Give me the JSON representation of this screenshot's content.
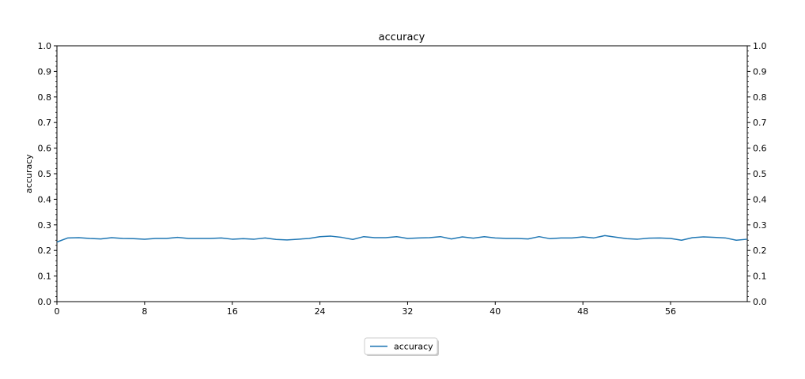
{
  "chart_data": {
    "type": "line",
    "title": "accuracy",
    "xlabel": "",
    "ylabel": "accuracy",
    "xlim": [
      0,
      63
    ],
    "ylim": [
      0.0,
      1.0
    ],
    "x_ticks": [
      0,
      8,
      16,
      24,
      32,
      40,
      48,
      56
    ],
    "y_ticks": [
      0.0,
      0.1,
      0.2,
      0.3,
      0.4,
      0.5,
      0.6,
      0.7,
      0.8,
      0.9,
      1.0
    ],
    "y_tick_labels": [
      "0.0",
      "0.1",
      "0.2",
      "0.3",
      "0.4",
      "0.5",
      "0.6",
      "0.7",
      "0.8",
      "0.9",
      "1.0"
    ],
    "right_axis_mirror": true,
    "grid": false,
    "legend_position": "bottom-center",
    "series": [
      {
        "name": "accuracy",
        "color": "#1f77b4",
        "x": [
          0,
          1,
          2,
          3,
          4,
          5,
          6,
          7,
          8,
          9,
          10,
          11,
          12,
          13,
          14,
          15,
          16,
          17,
          18,
          19,
          20,
          21,
          22,
          23,
          24,
          25,
          26,
          27,
          28,
          29,
          30,
          31,
          32,
          33,
          34,
          35,
          36,
          37,
          38,
          39,
          40,
          41,
          42,
          43,
          44,
          45,
          46,
          47,
          48,
          49,
          50,
          51,
          52,
          53,
          54,
          55,
          56,
          57,
          58,
          59,
          60,
          61,
          62,
          63
        ],
        "values": [
          0.233,
          0.249,
          0.25,
          0.247,
          0.245,
          0.25,
          0.247,
          0.246,
          0.244,
          0.247,
          0.247,
          0.251,
          0.247,
          0.247,
          0.247,
          0.249,
          0.244,
          0.246,
          0.244,
          0.249,
          0.243,
          0.241,
          0.244,
          0.247,
          0.254,
          0.256,
          0.251,
          0.243,
          0.254,
          0.25,
          0.25,
          0.254,
          0.247,
          0.249,
          0.25,
          0.254,
          0.245,
          0.253,
          0.248,
          0.254,
          0.249,
          0.247,
          0.247,
          0.245,
          0.254,
          0.246,
          0.249,
          0.249,
          0.253,
          0.249,
          0.258,
          0.252,
          0.246,
          0.244,
          0.248,
          0.249,
          0.247,
          0.24,
          0.25,
          0.253,
          0.251,
          0.249,
          0.24,
          0.244
        ]
      }
    ]
  }
}
